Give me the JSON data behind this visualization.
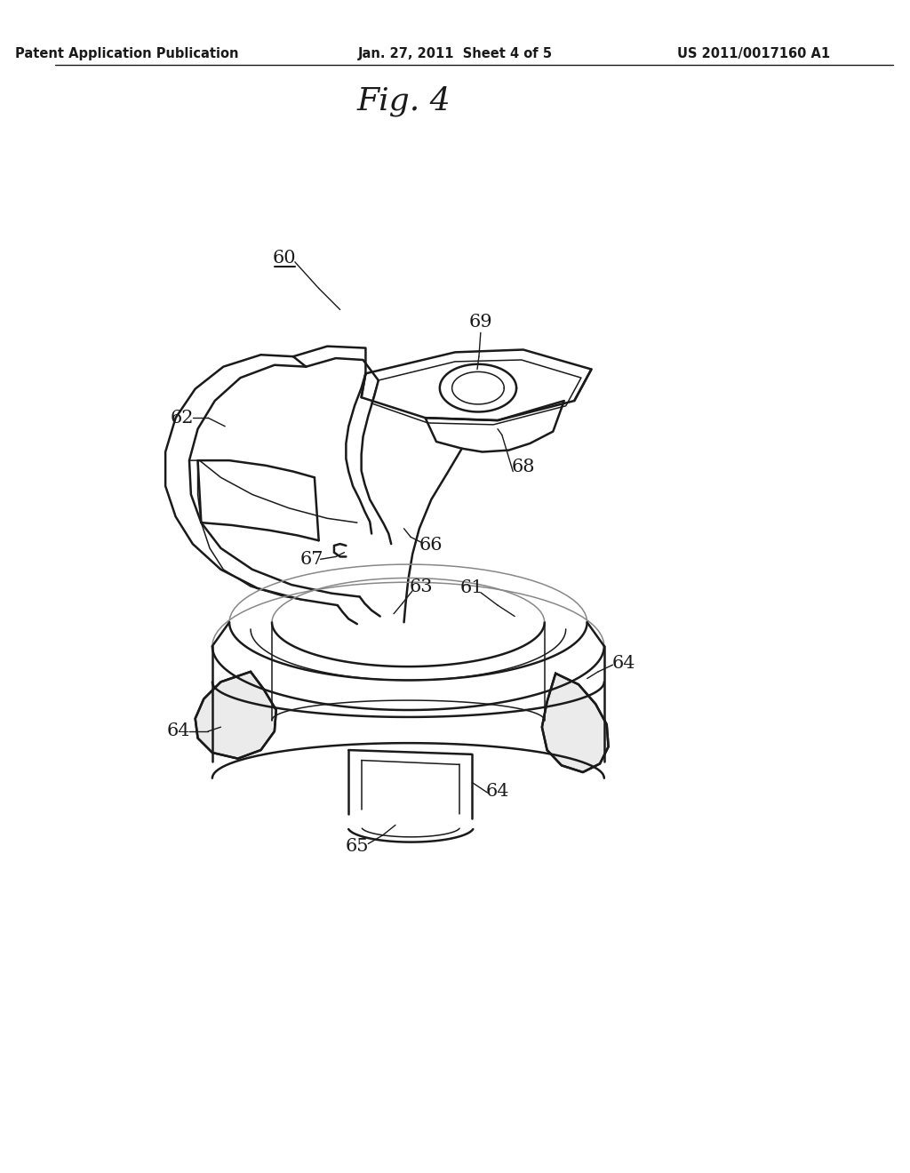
{
  "header_left": "Patent Application Publication",
  "header_center": "Jan. 27, 2011  Sheet 4 of 5",
  "header_right": "US 2011/0017160 A1",
  "fig_title": "Fig. 4",
  "background_color": "#ffffff",
  "line_color": "#1a1a1a",
  "lw_main": 1.8,
  "lw_thin": 1.1,
  "lw_label": 1.0,
  "label_fontsize": 15,
  "header_fontsize": 10.5,
  "title_fontsize": 26
}
